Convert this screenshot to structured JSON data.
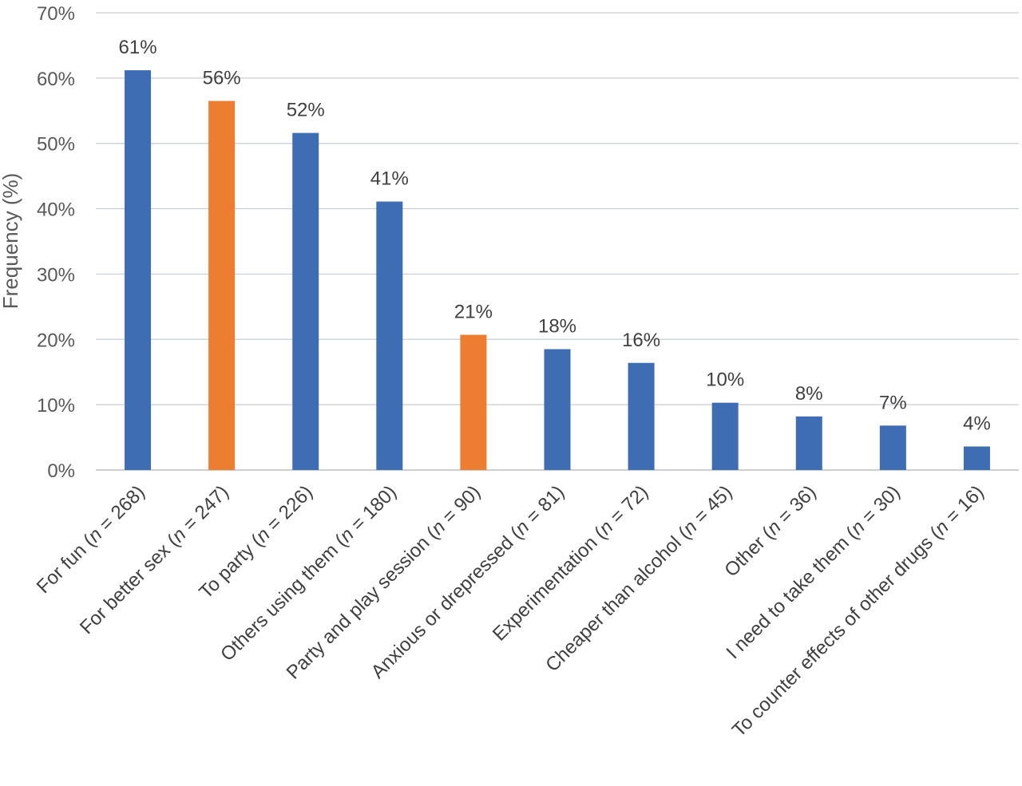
{
  "chart_data": {
    "type": "bar",
    "title": "",
    "xlabel": "",
    "ylabel": "Frequency (%)",
    "ylim": [
      0,
      70
    ],
    "yticks": [
      "0%",
      "10%",
      "20%",
      "30%",
      "40%",
      "50%",
      "60%",
      "70%"
    ],
    "grid": true,
    "categories": [
      {
        "label": "For fun (",
        "n": "268"
      },
      {
        "label": "For better sex (",
        "n": "247"
      },
      {
        "label": "To party (",
        "n": "226"
      },
      {
        "label": "Others using them (",
        "n": "180"
      },
      {
        "label": "Party and play session (",
        "n": "90"
      },
      {
        "label": "Anxious or drepressed (",
        "n": "81"
      },
      {
        "label": "Experimentation (",
        "n": "72"
      },
      {
        "label": "Cheaper than alcohol (",
        "n": "45"
      },
      {
        "label": "Other (",
        "n": "36"
      },
      {
        "label": "I need to take them (",
        "n": "30"
      },
      {
        "label": "To counter effects of other drugs (",
        "n": "16"
      }
    ],
    "values": [
      61.2,
      56.5,
      51.6,
      41.1,
      20.7,
      18.5,
      16.4,
      10.3,
      8.2,
      6.8,
      3.6
    ],
    "data_labels": [
      "61%",
      "56%",
      "52%",
      "41%",
      "21%",
      "18%",
      "16%",
      "10%",
      "8%",
      "7%",
      "4%"
    ],
    "bar_colors": [
      "#3f6db3",
      "#ed7d31",
      "#3f6db3",
      "#3f6db3",
      "#ed7d31",
      "#3f6db3",
      "#3f6db3",
      "#3f6db3",
      "#3f6db3",
      "#3f6db3",
      "#3f6db3"
    ]
  }
}
